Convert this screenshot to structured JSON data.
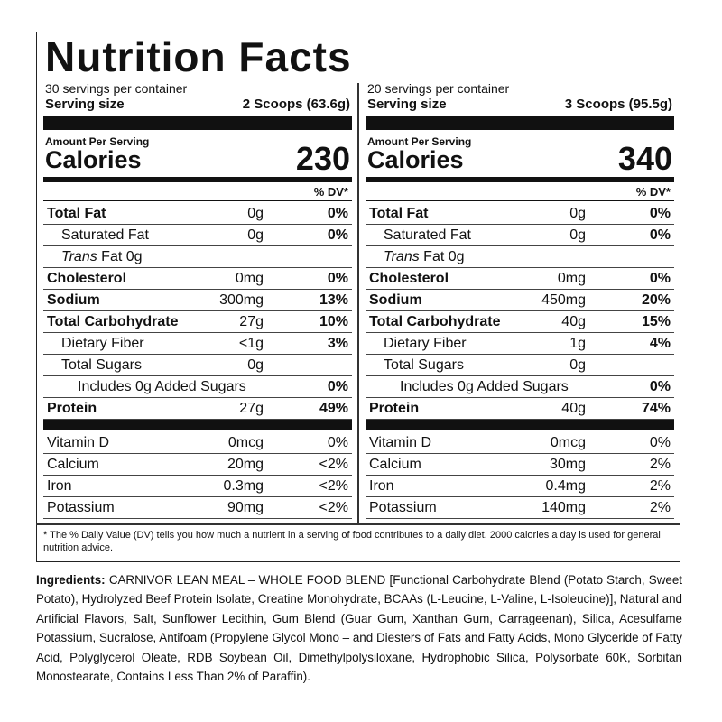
{
  "title": "Nutrition Facts",
  "columns": [
    {
      "servings_per_container": "30 servings per container",
      "serving_size_label": "Serving size",
      "serving_size": "2 Scoops (63.6g)",
      "amount_per_serving": "Amount Per Serving",
      "calories_label": "Calories",
      "calories": "230",
      "dv_header": "% DV*",
      "nutrients": [
        {
          "name": "Total Fat",
          "amount": "0g",
          "dv": "0%"
        },
        {
          "name": "Saturated Fat",
          "amount": "0g",
          "dv": "0%"
        },
        {
          "prefix": "Trans",
          "name": "Fat 0g"
        },
        {
          "name": "Cholesterol",
          "amount": "0mg",
          "dv": "0%"
        },
        {
          "name": "Sodium",
          "amount": "300mg",
          "dv": "13%"
        },
        {
          "name": "Total Carbohydrate",
          "amount": "27g",
          "dv": "10%"
        },
        {
          "name": "Dietary Fiber",
          "amount": "<1g",
          "dv": "3%"
        },
        {
          "name": "Total Sugars",
          "amount": "0g"
        },
        {
          "name": "Includes 0g Added Sugars",
          "dv": "0%"
        },
        {
          "name": "Protein",
          "amount": "27g",
          "dv": "49%"
        }
      ],
      "vitamins": [
        {
          "name": "Vitamin D",
          "amount": "0mcg",
          "dv": "0%"
        },
        {
          "name": "Calcium",
          "amount": "20mg",
          "dv": "<2%"
        },
        {
          "name": "Iron",
          "amount": "0.3mg",
          "dv": "<2%"
        },
        {
          "name": "Potassium",
          "amount": "90mg",
          "dv": "<2%"
        }
      ]
    },
    {
      "servings_per_container": "20 servings per container",
      "serving_size_label": "Serving size",
      "serving_size": "3 Scoops (95.5g)",
      "amount_per_serving": "Amount Per Serving",
      "calories_label": "Calories",
      "calories": "340",
      "dv_header": "% DV*",
      "nutrients": [
        {
          "name": "Total Fat",
          "amount": "0g",
          "dv": "0%"
        },
        {
          "name": "Saturated Fat",
          "amount": "0g",
          "dv": "0%"
        },
        {
          "prefix": "Trans",
          "name": "Fat 0g"
        },
        {
          "name": "Cholesterol",
          "amount": "0mg",
          "dv": "0%"
        },
        {
          "name": "Sodium",
          "amount": "450mg",
          "dv": "20%"
        },
        {
          "name": "Total Carbohydrate",
          "amount": "40g",
          "dv": "15%"
        },
        {
          "name": "Dietary Fiber",
          "amount": "1g",
          "dv": "4%"
        },
        {
          "name": "Total Sugars",
          "amount": "0g"
        },
        {
          "name": "Includes 0g Added Sugars",
          "dv": "0%"
        },
        {
          "name": "Protein",
          "amount": "40g",
          "dv": "74%"
        }
      ],
      "vitamins": [
        {
          "name": "Vitamin D",
          "amount": "0mcg",
          "dv": "0%"
        },
        {
          "name": "Calcium",
          "amount": "30mg",
          "dv": "2%"
        },
        {
          "name": "Iron",
          "amount": "0.4mg",
          "dv": "2%"
        },
        {
          "name": "Potassium",
          "amount": "140mg",
          "dv": "2%"
        }
      ]
    }
  ],
  "footnote": "* The % Daily Value (DV) tells you how much a nutrient in a serving of food contributes to a daily diet. 2000 calories a day is used for general nutrition advice.",
  "ingredients": {
    "label": "Ingredients:",
    "text": "CARNIVOR LEAN MEAL – WHOLE FOOD BLEND [Functional Carbohydrate Blend (Potato Starch, Sweet Potato), Hydrolyzed Beef Protein Isolate, Creatine Monohydrate, BCAAs (L-Leucine, L-Valine, L-Isoleucine)], Natural and Artificial Flavors, Salt, Sunflower Lecithin, Gum Blend (Guar Gum, Xanthan Gum, Carrageenan), Silica, Acesulfame Potassium, Sucralose, Antifoam (Propylene Glycol Mono – and Diesters of Fats and Fatty Acids, Mono Glyceride of Fatty Acid, Polyglycerol Oleate, RDB Soybean Oil, Dimethylpolysiloxane, Hydrophobic Silica, Polysorbate 60K, Sorbitan Monostearate, Contains Less Than 2% of Paraffin)."
  }
}
